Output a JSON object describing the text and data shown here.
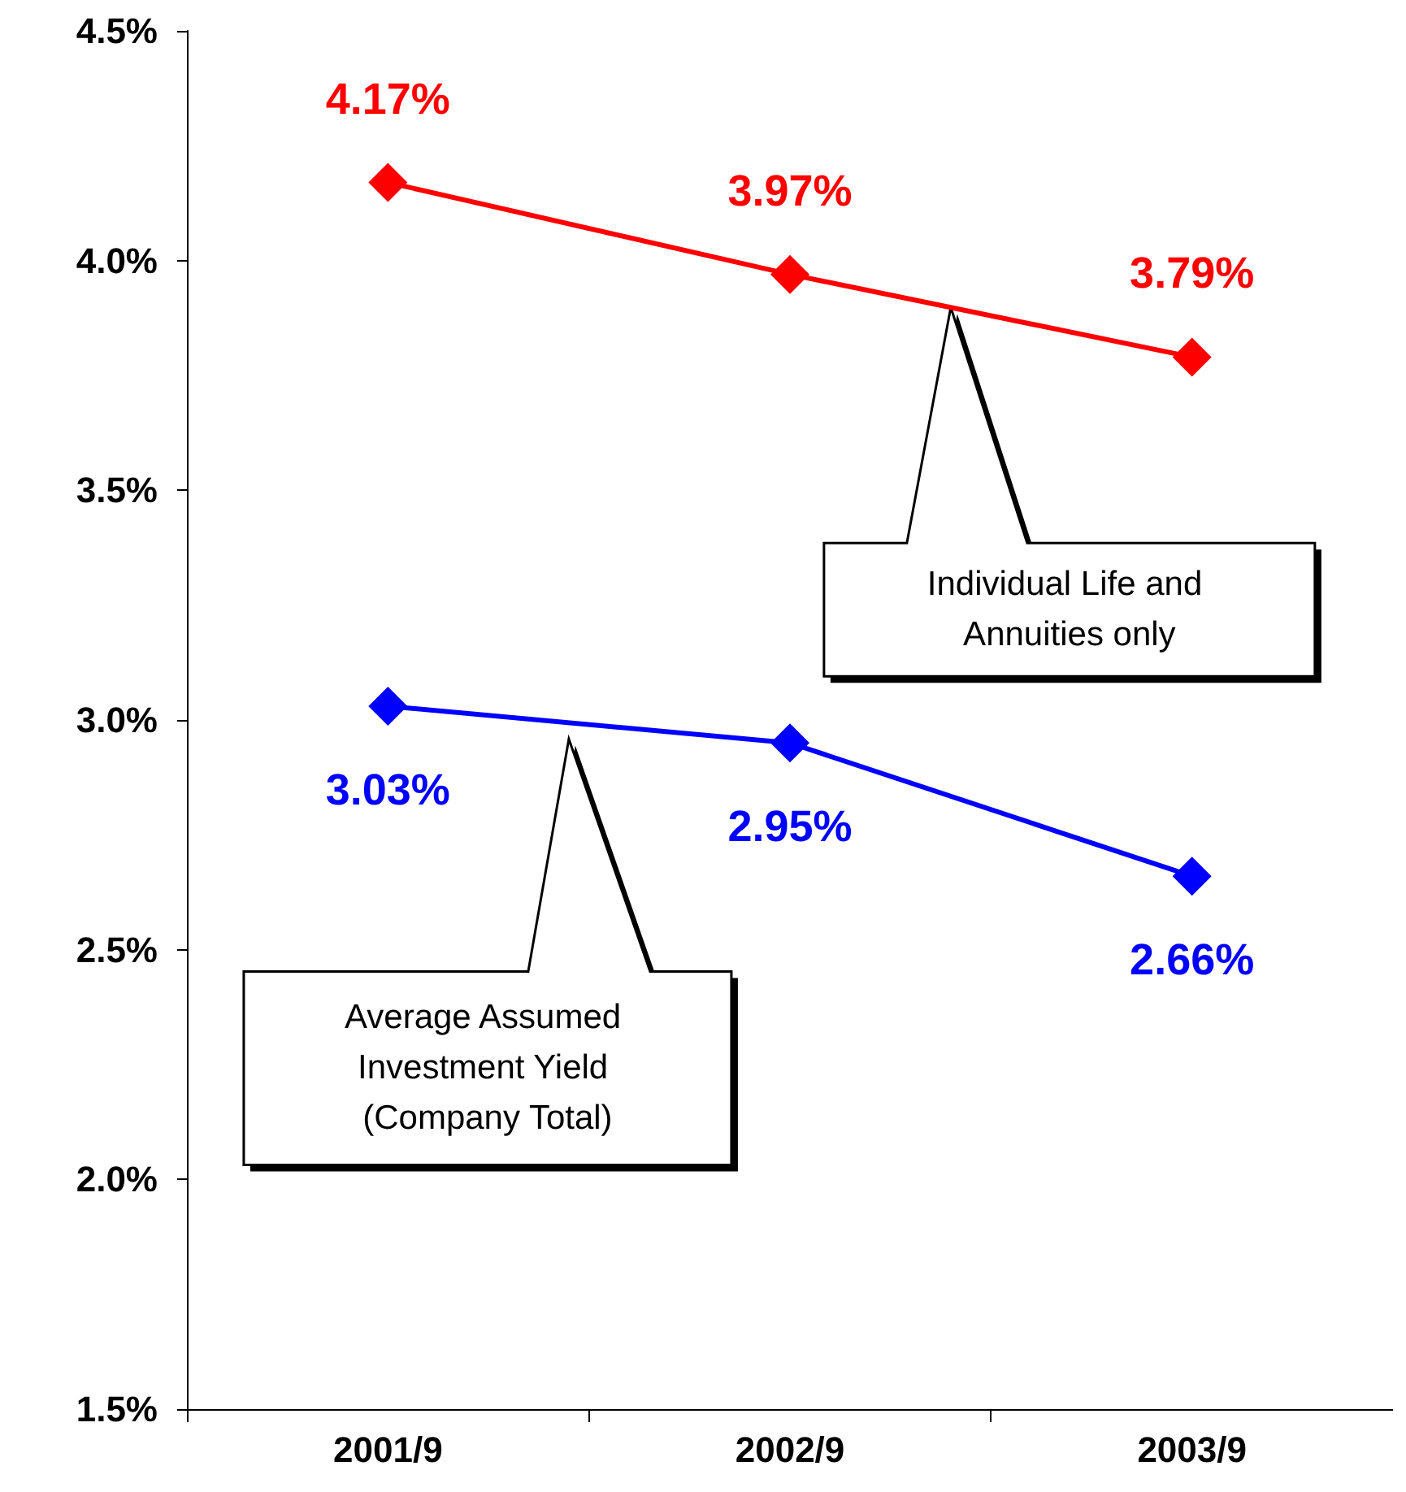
{
  "chart_data": {
    "type": "line",
    "categories": [
      "2001/9",
      "2002/9",
      "2003/9"
    ],
    "series": [
      {
        "color": "#ff0000",
        "values": [
          4.17,
          3.97,
          3.79
        ],
        "value_labels": [
          "4.17%",
          "3.97%",
          "3.79%"
        ]
      },
      {
        "color": "#0000ff",
        "values": [
          3.03,
          2.95,
          2.66
        ],
        "value_labels": [
          "3.03%",
          "2.95%",
          "2.66%"
        ]
      }
    ],
    "ylim": [
      1.5,
      4.5
    ],
    "yticks": [
      {
        "value": 1.5,
        "label": "1.5%"
      },
      {
        "value": 2.0,
        "label": "2.0%"
      },
      {
        "value": 2.5,
        "label": "2.5%"
      },
      {
        "value": 3.0,
        "label": "3.0%"
      },
      {
        "value": 3.5,
        "label": "3.5%"
      },
      {
        "value": 4.0,
        "label": "4.0%"
      },
      {
        "value": 4.5,
        "label": "4.5%"
      }
    ],
    "annotations": [
      "Individual Life and Annuities only",
      "Average Assumed Investment Yield (Company Total)"
    ],
    "grid": false,
    "marker": "diamond",
    "line_style": "solid"
  }
}
